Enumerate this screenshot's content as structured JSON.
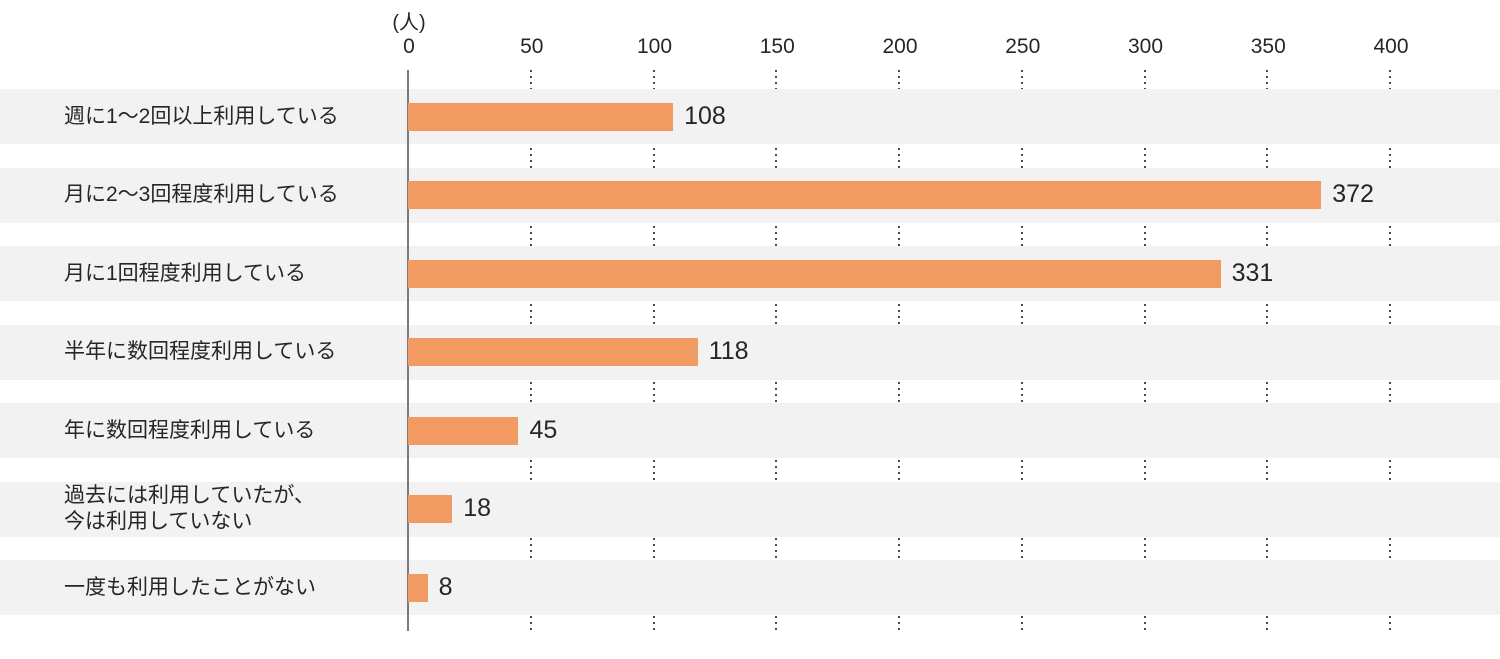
{
  "chart_data": {
    "type": "bar",
    "orientation": "horizontal",
    "title": "",
    "unit_label": "(人)",
    "categories": [
      "週に1〜2回以上利用している",
      "月に2〜3回程度利用している",
      "月に1回程度利用している",
      "半年に数回程度利用している",
      "年に数回程度利用している",
      "過去には利用していたが、今は利用していない",
      "一度も利用したことがない"
    ],
    "category_lines": [
      [
        "週に1〜2回以上利用している"
      ],
      [
        "月に2〜3回程度利用している"
      ],
      [
        "月に1回程度利用している"
      ],
      [
        "半年に数回程度利用している"
      ],
      [
        "年に数回程度利用している"
      ],
      [
        "過去には利用していたが、",
        "今は利用していない"
      ],
      [
        "一度も利用したことがない"
      ]
    ],
    "values": [
      108,
      372,
      331,
      118,
      45,
      18,
      8
    ],
    "xlim": [
      0,
      400
    ],
    "xticks": [
      "0",
      "50",
      "100",
      "150",
      "200",
      "250",
      "300",
      "350",
      "400"
    ],
    "grid": "dotted vertical lines at each tick, hidden behind row bands",
    "legend_position": "none",
    "colors": {
      "bar": "#f19a62",
      "row_background": "#f2f2f2",
      "axis_line": "#7a7a7a",
      "grid_dot": "#4a4a4a",
      "text": "#262626"
    }
  }
}
